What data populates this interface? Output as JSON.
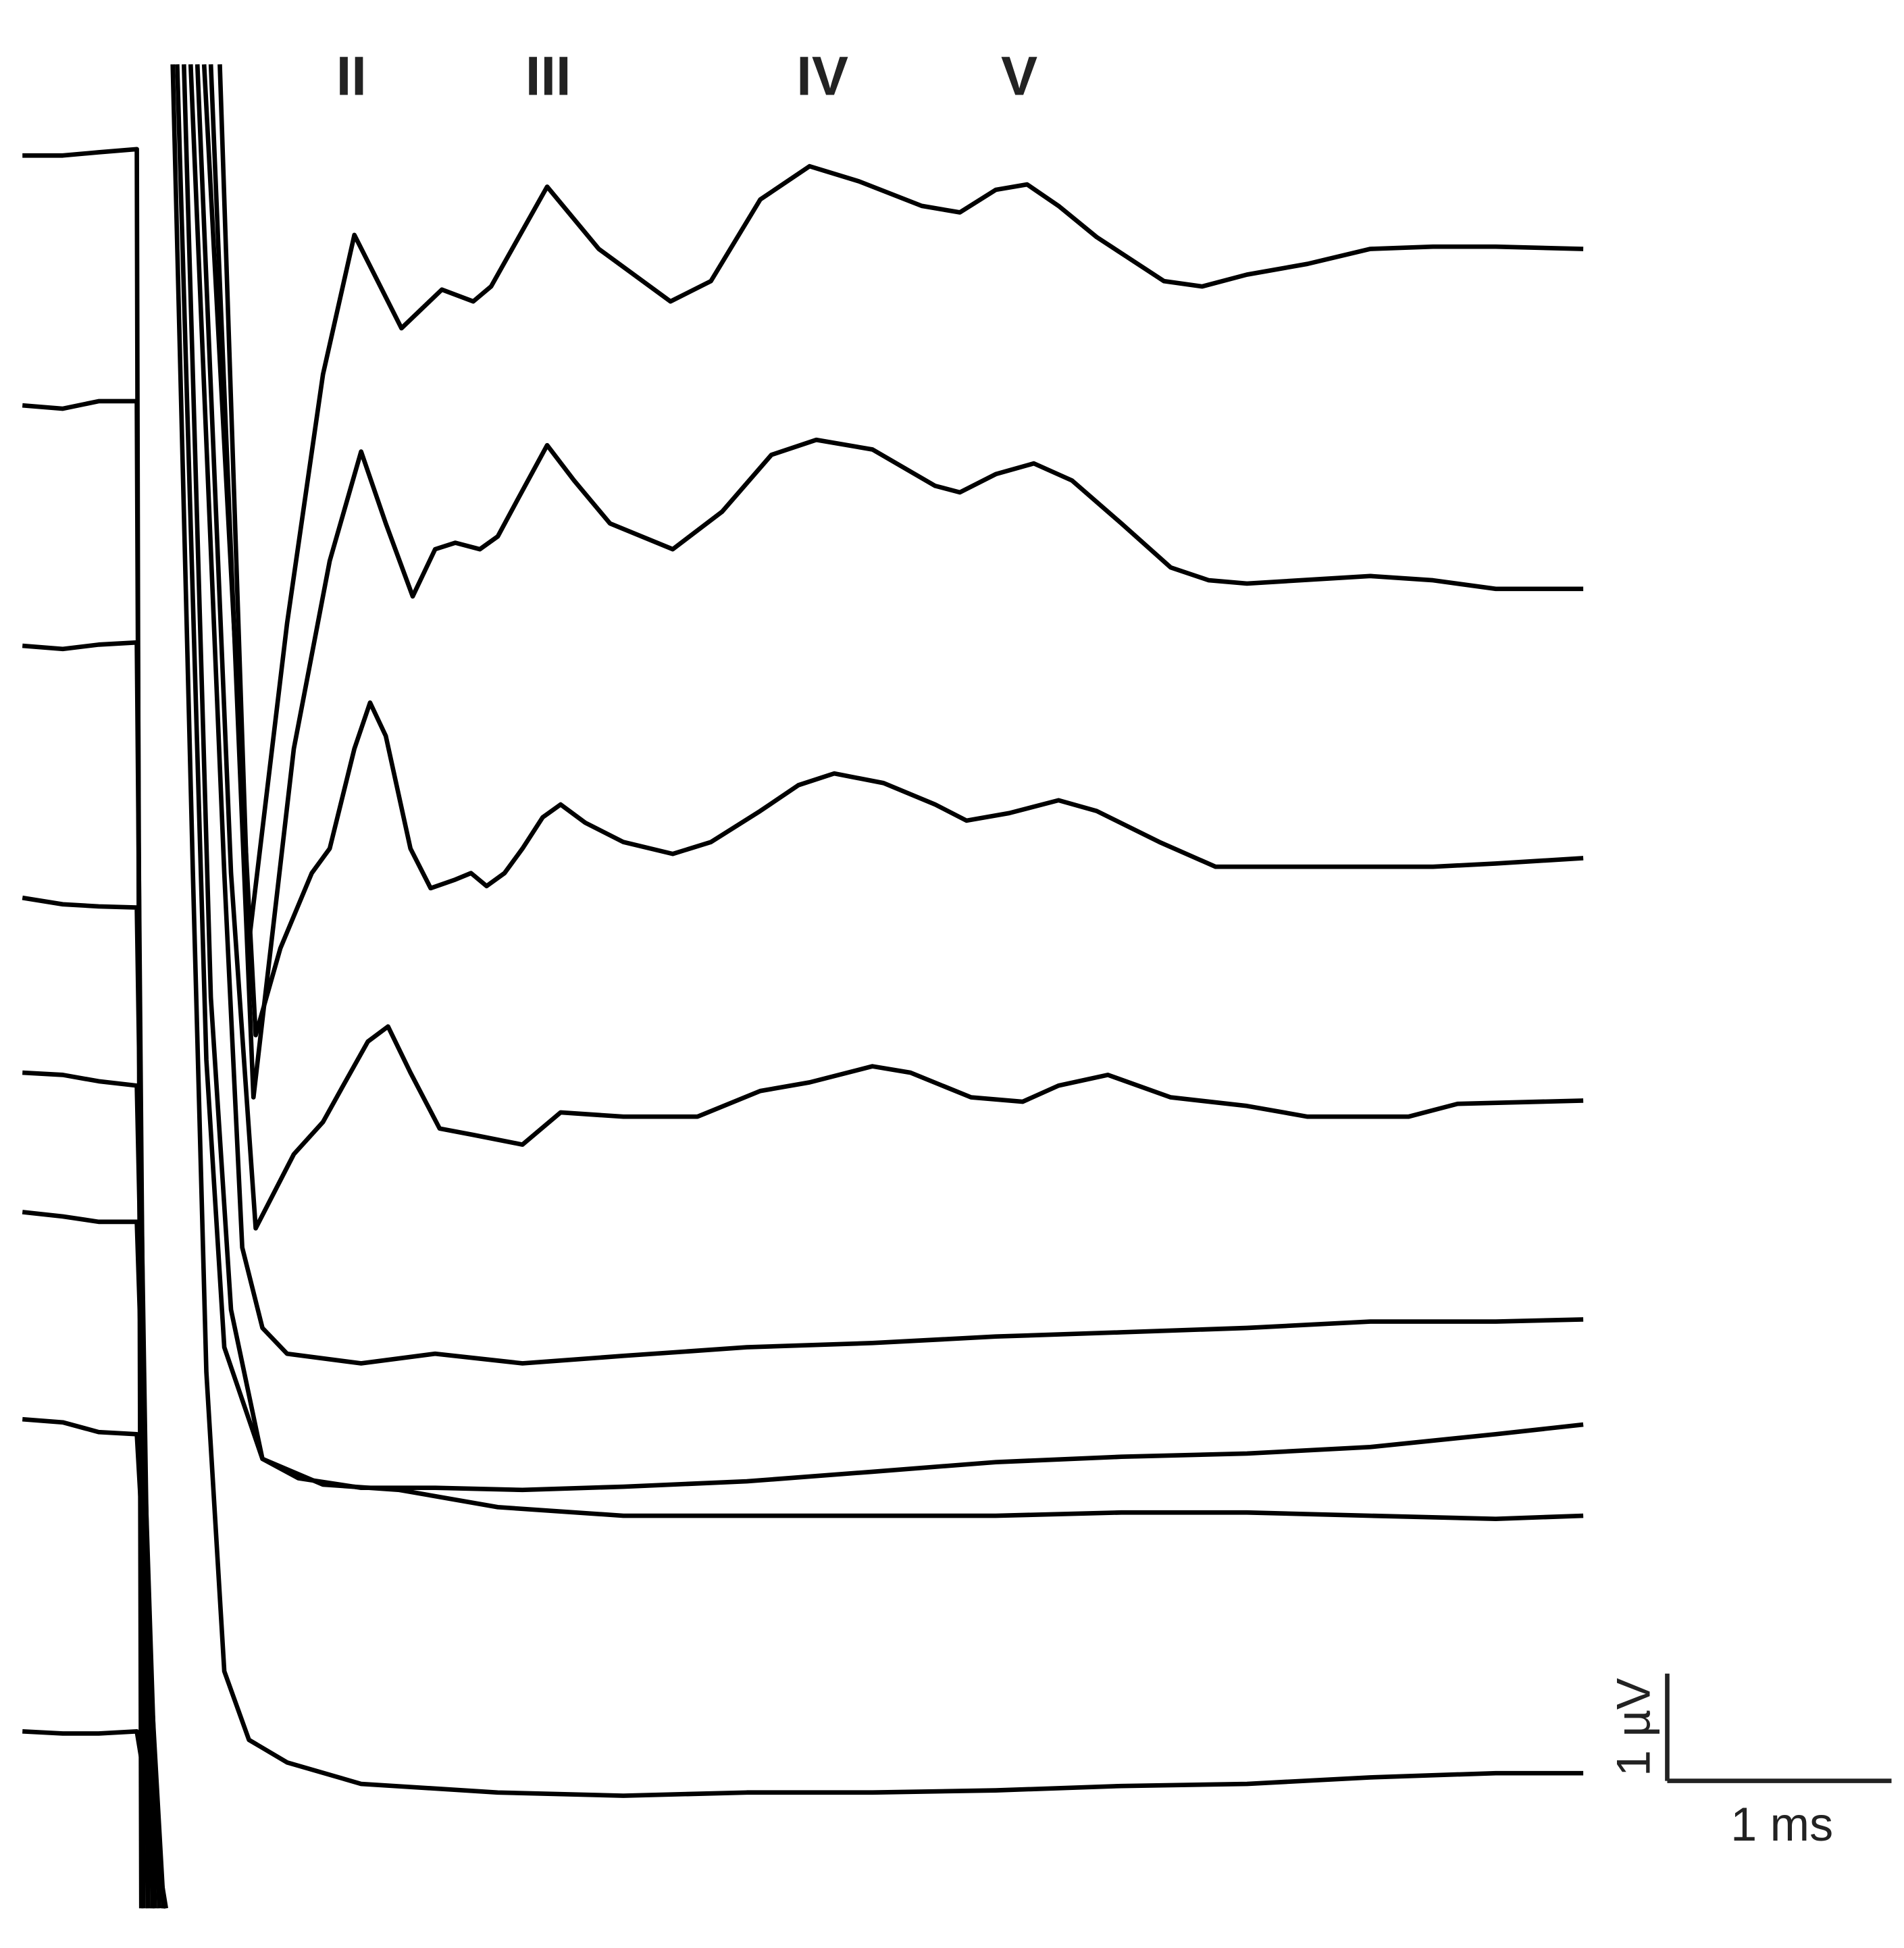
{
  "chart_data": {
    "type": "line",
    "xlim": [
      -0.1,
      8.39
    ],
    "ylim": [
      -0.37,
      17.79
    ],
    "annotations": [
      "II",
      "III",
      "IV",
      "V"
    ],
    "scale_bar": {
      "x_length": 1,
      "x_label": "1 ms",
      "y_length": 1,
      "y_label": "1 µV"
    },
    "series": [
      {
        "color": "#000000",
        "x": [
          0,
          0.18,
          0.34,
          0.51,
          0.53,
          null,
          0.88,
          1.01,
          1.18,
          1.34,
          1.48,
          1.69,
          1.87,
          2.01,
          2.09,
          2.34,
          2.57,
          2.89,
          3.07,
          3.29,
          3.51,
          3.73,
          4.01,
          4.18,
          4.34,
          4.48,
          4.62,
          4.79,
          5.09,
          5.26,
          5.46,
          5.73,
          6.01,
          6.29,
          6.57,
          6.96
        ],
        "values": [
          16.34,
          16.34,
          16.37,
          16.4,
          0,
          null,
          17.19,
          9.01,
          11.98,
          14.3,
          15.6,
          14.73,
          15.09,
          14.98,
          15.12,
          16.05,
          15.47,
          14.98,
          15.17,
          15.93,
          16.24,
          16.1,
          15.87,
          15.81,
          16.02,
          16.07,
          15.87,
          15.58,
          15.17,
          15.12,
          15.23,
          15.33,
          15.47,
          15.49,
          15.49,
          15.47
        ]
      },
      {
        "color": "#000000",
        "x": [
          0,
          0.18,
          0.34,
          0.51,
          0.54,
          null,
          0.84,
          1.03,
          1.21,
          1.37,
          1.51,
          1.62,
          1.74,
          1.84,
          1.93,
          2.04,
          2.12,
          2.21,
          2.34,
          2.46,
          2.62,
          2.9,
          3.12,
          3.34,
          3.54,
          3.79,
          4.07,
          4.18,
          4.34,
          4.51,
          4.68,
          4.9,
          5.12,
          5.29,
          5.46,
          6.01,
          6.29,
          6.57,
          6.96
        ],
        "values": [
          14.01,
          13.98,
          14.05,
          14.05,
          0,
          null,
          17.19,
          7.56,
          10.81,
          12.56,
          13.58,
          12.91,
          12.23,
          12.67,
          12.73,
          12.67,
          12.79,
          13.14,
          13.64,
          13.31,
          12.91,
          12.67,
          13.02,
          13.55,
          13.69,
          13.6,
          13.26,
          13.2,
          13.37,
          13.47,
          13.31,
          12.91,
          12.5,
          12.38,
          12.35,
          12.42,
          12.38,
          12.3,
          12.3
        ]
      },
      {
        "color": "#000000",
        "x": [
          0,
          0.18,
          0.34,
          0.51,
          0.56,
          null,
          0.81,
          1.04,
          1.15,
          1.29,
          1.37,
          1.48,
          1.55,
          1.62,
          1.73,
          1.82,
          1.93,
          2.0,
          2.07,
          2.15,
          2.23,
          2.32,
          2.4,
          2.51,
          2.68,
          2.9,
          3.07,
          3.29,
          3.46,
          3.62,
          3.84,
          4.07,
          4.21,
          4.4,
          4.62,
          4.79,
          5.07,
          5.32,
          5.73,
          6.29,
          6.57,
          6.96
        ],
        "values": [
          11.77,
          11.74,
          11.78,
          11.8,
          0,
          null,
          17.19,
          8.14,
          8.95,
          9.65,
          9.88,
          10.81,
          11.24,
          10.93,
          9.88,
          9.51,
          9.59,
          9.65,
          9.53,
          9.65,
          9.88,
          10.17,
          10.29,
          10.12,
          9.94,
          9.83,
          9.94,
          10.23,
          10.47,
          10.58,
          10.49,
          10.29,
          10.14,
          10.21,
          10.33,
          10.23,
          9.94,
          9.71,
          9.71,
          9.71,
          9.74,
          9.79
        ]
      },
      {
        "color": "#000000",
        "x": [
          0,
          0.18,
          0.34,
          0.51,
          0.58,
          null,
          0.78,
          0.93,
          1.04,
          1.21,
          1.34,
          1.43,
          1.54,
          1.63,
          1.73,
          1.86,
          2.01,
          2.23,
          2.4,
          2.68,
          3.01,
          3.29,
          3.51,
          3.79,
          3.96,
          4.23,
          4.46,
          4.62,
          4.84,
          5.12,
          5.46,
          5.73,
          6.18,
          6.4,
          6.96
        ],
        "values": [
          9.42,
          9.36,
          9.34,
          9.33,
          0,
          null,
          17.19,
          9.65,
          6.34,
          7.03,
          7.33,
          7.67,
          8.08,
          8.22,
          7.79,
          7.27,
          7.21,
          7.12,
          7.42,
          7.38,
          7.38,
          7.62,
          7.7,
          7.85,
          7.79,
          7.56,
          7.52,
          7.67,
          7.77,
          7.56,
          7.48,
          7.38,
          7.38,
          7.5,
          7.53
        ]
      },
      {
        "color": "#000000",
        "x": [
          0,
          0.18,
          0.34,
          0.51,
          0.59,
          null,
          0.75,
          0.9,
          0.98,
          1.07,
          1.18,
          1.51,
          1.84,
          2.23,
          2.68,
          3.23,
          3.79,
          4.34,
          4.9,
          5.46,
          6.01,
          6.57,
          6.96
        ],
        "values": [
          7.79,
          7.77,
          7.71,
          7.67,
          0,
          null,
          17.19,
          9.65,
          6.16,
          5.41,
          5.17,
          5.08,
          5.17,
          5.08,
          5.15,
          5.23,
          5.27,
          5.33,
          5.37,
          5.41,
          5.47,
          5.47,
          5.49
        ]
      },
      {
        "color": "#000000",
        "x": [
          0,
          0.18,
          0.34,
          0.51,
          0.61,
          null,
          0.72,
          0.84,
          0.93,
          1.07,
          1.23,
          1.51,
          1.84,
          2.23,
          2.68,
          3.23,
          3.79,
          4.34,
          4.9,
          5.46,
          6.01,
          6.57,
          6.96
        ],
        "values": [
          6.49,
          6.45,
          6.4,
          6.4,
          0,
          null,
          17.19,
          8.49,
          5.58,
          4.19,
          4.01,
          3.92,
          3.92,
          3.9,
          3.93,
          3.98,
          4.07,
          4.16,
          4.21,
          4.24,
          4.3,
          4.42,
          4.51
        ]
      },
      {
        "color": "#000000",
        "x": [
          0,
          0.18,
          0.34,
          0.51,
          0.63,
          null,
          0.69,
          0.82,
          0.9,
          1.07,
          1.34,
          1.68,
          2.12,
          2.68,
          3.23,
          3.79,
          4.34,
          4.9,
          5.46,
          6.01,
          6.57,
          6.96
        ],
        "values": [
          4.56,
          4.53,
          4.44,
          4.42,
          0,
          null,
          17.19,
          7.91,
          5.23,
          4.19,
          3.95,
          3.9,
          3.74,
          3.66,
          3.66,
          3.66,
          3.66,
          3.69,
          3.69,
          3.66,
          3.63,
          3.66
        ]
      },
      {
        "color": "#000000",
        "x": [
          0,
          0.18,
          0.34,
          0.51,
          0.64,
          null,
          0.67,
          0.76,
          0.82,
          0.9,
          1.01,
          1.18,
          1.51,
          2.12,
          2.68,
          3.23,
          3.79,
          4.34,
          4.9,
          5.46,
          6.01,
          6.57,
          6.96
        ],
        "values": [
          1.65,
          1.63,
          1.63,
          1.65,
          0,
          null,
          17.19,
          9.65,
          5.0,
          2.21,
          1.57,
          1.36,
          1.16,
          1.08,
          1.05,
          1.08,
          1.08,
          1.1,
          1.14,
          1.16,
          1.22,
          1.26,
          1.26
        ]
      }
    ]
  }
}
